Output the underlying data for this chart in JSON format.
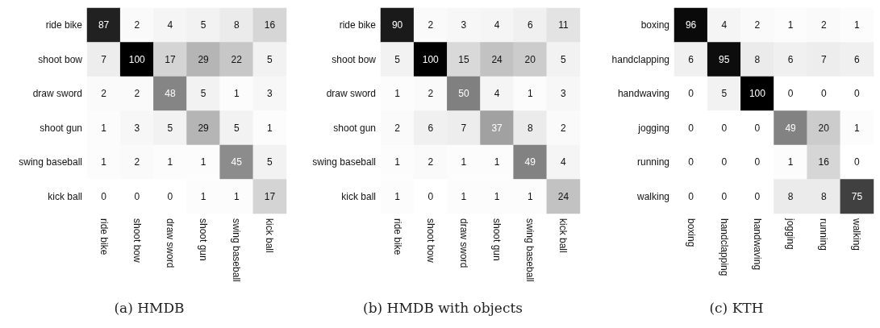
{
  "chart_data": [
    {
      "type": "heatmap",
      "title": "(a) HMDB",
      "data_labels": true,
      "categories": [
        "ride bike",
        "shoot bow",
        "draw sword",
        "shoot gun",
        "swing baseball",
        "kick ball"
      ],
      "y_categories": [
        "ride bike",
        "shoot bow",
        "draw sword",
        "shoot gun",
        "swing baseball",
        "kick ball"
      ],
      "cells": [
        [
          87,
          2,
          4,
          5,
          8,
          16
        ],
        [
          7,
          100,
          17,
          29,
          22,
          5
        ],
        [
          2,
          2,
          48,
          5,
          1,
          3
        ],
        [
          1,
          3,
          5,
          29,
          5,
          1
        ],
        [
          1,
          2,
          1,
          1,
          45,
          5
        ],
        [
          0,
          0,
          0,
          1,
          1,
          17
        ]
      ]
    },
    {
      "type": "heatmap",
      "title": "(b) HMDB with objects",
      "data_labels": true,
      "categories": [
        "ride bike",
        "shoot bow",
        "draw sword",
        "shoot gun",
        "swing baseball",
        "kick ball"
      ],
      "y_categories": [
        "ride bike",
        "shoot bow",
        "draw sword",
        "shoot gun",
        "swing baseball",
        "kick ball"
      ],
      "cells": [
        [
          90,
          2,
          3,
          4,
          6,
          11
        ],
        [
          5,
          100,
          15,
          24,
          20,
          5
        ],
        [
          1,
          2,
          50,
          4,
          1,
          3
        ],
        [
          2,
          6,
          7,
          37,
          8,
          2
        ],
        [
          1,
          2,
          1,
          1,
          49,
          4
        ],
        [
          1,
          0,
          1,
          1,
          1,
          24
        ]
      ]
    },
    {
      "type": "heatmap",
      "title": "(c) KTH",
      "data_labels": true,
      "categories": [
        "boxing",
        "handclapping",
        "handwaving",
        "jogging",
        "running",
        "walking"
      ],
      "y_categories": [
        "boxing",
        "handclapping",
        "handwaving",
        "jogging",
        "running",
        "walking"
      ],
      "cells": [
        [
          96,
          4,
          2,
          1,
          2,
          1
        ],
        [
          6,
          95,
          8,
          6,
          7,
          6
        ],
        [
          0,
          5,
          100,
          0,
          0,
          0
        ],
        [
          0,
          0,
          0,
          49,
          20,
          1
        ],
        [
          0,
          0,
          0,
          1,
          16,
          0
        ],
        [
          0,
          0,
          0,
          8,
          8,
          75
        ]
      ]
    }
  ]
}
